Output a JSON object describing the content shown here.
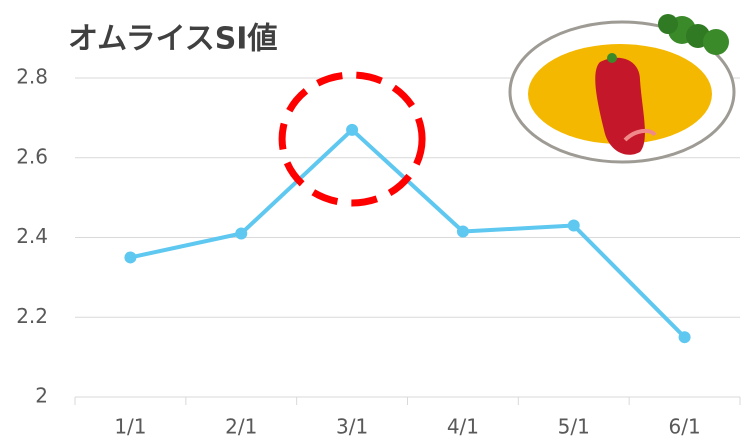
{
  "chart_data": {
    "type": "line",
    "title": "オムライスSI値",
    "categories": [
      "1/1",
      "2/1",
      "3/1",
      "4/1",
      "5/1",
      "6/1"
    ],
    "values": [
      2.35,
      2.41,
      2.67,
      2.415,
      2.43,
      2.15
    ],
    "color": "#5ec8f0",
    "ylim": [
      2,
      2.8
    ],
    "yticks": [
      2,
      2.2,
      2.4,
      2.6,
      2.8
    ],
    "grid": true
  }
}
